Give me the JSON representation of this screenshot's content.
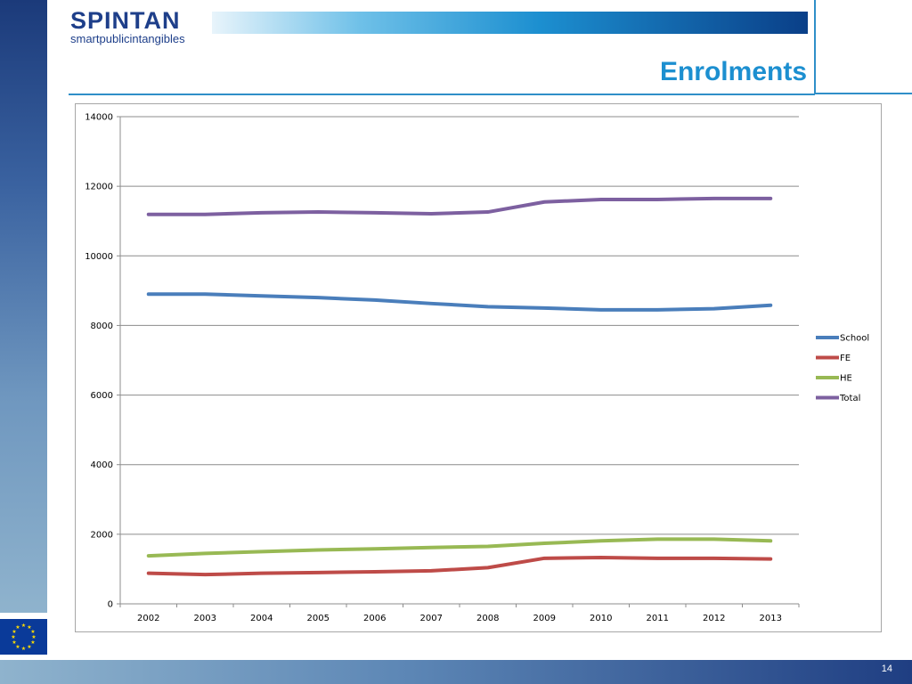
{
  "logo": {
    "word": "SPINTAN",
    "tagline": "smartpublicintangibles"
  },
  "page": {
    "title": "Enrolments",
    "number": "14"
  },
  "colors": {
    "accent": "#1c8fd0",
    "school": "#4a7ebb",
    "fe": "#be4b48",
    "he": "#98b954",
    "total": "#7d60a0"
  },
  "chart_data": {
    "type": "line",
    "title": "",
    "xlabel": "",
    "ylabel": "",
    "categories": [
      "2002",
      "2003",
      "2004",
      "2005",
      "2006",
      "2007",
      "2008",
      "2009",
      "2010",
      "2011",
      "2012",
      "2013"
    ],
    "ylim": [
      0,
      14000
    ],
    "yticks": [
      "0",
      "2000",
      "4000",
      "6000",
      "8000",
      "10000",
      "12000",
      "14000"
    ],
    "grid": true,
    "legend_position": "right",
    "series": [
      {
        "name": "School",
        "values": [
          8900,
          8900,
          8850,
          8800,
          8730,
          8630,
          8540,
          8500,
          8450,
          8450,
          8480,
          8580
        ]
      },
      {
        "name": "FE",
        "values": [
          880,
          840,
          880,
          900,
          920,
          950,
          1040,
          1310,
          1330,
          1310,
          1310,
          1290
        ]
      },
      {
        "name": "HE",
        "values": [
          1380,
          1450,
          1500,
          1550,
          1580,
          1620,
          1650,
          1740,
          1810,
          1860,
          1860,
          1810
        ]
      },
      {
        "name": "Total",
        "values": [
          11190,
          11190,
          11240,
          11260,
          11240,
          11210,
          11260,
          11550,
          11620,
          11620,
          11650,
          11650
        ]
      }
    ]
  }
}
